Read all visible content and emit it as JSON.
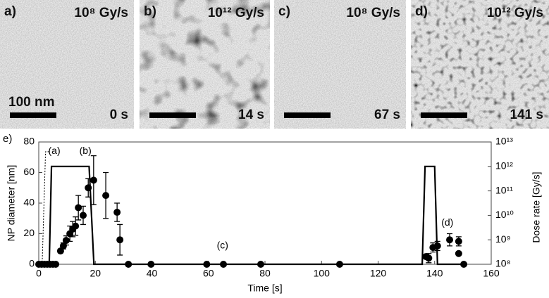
{
  "panels": [
    {
      "letter": "a)",
      "dose": "10⁸ Gy/s",
      "time": "0 s",
      "scale": "100 nm"
    },
    {
      "letter": "b)",
      "dose": "10¹² Gy/s",
      "time": "14 s"
    },
    {
      "letter": "c)",
      "dose": "10⁸ Gy/s",
      "time": "67 s"
    },
    {
      "letter": "d)",
      "dose": "10¹² Gy/s",
      "time": "141 s"
    }
  ],
  "chart_data": {
    "type": "scatter",
    "panel_label": "e)",
    "x_label": "Time [s]",
    "y_label": "NP diameter [nm]",
    "y2_label": "Dose rate  [Gy/s]",
    "xlim": [
      0,
      160
    ],
    "xticks": [
      0,
      20,
      40,
      60,
      80,
      100,
      120,
      140,
      160
    ],
    "ylim": [
      0,
      80
    ],
    "yticks": [
      0,
      20,
      40,
      60,
      80
    ],
    "y2lim": [
      100000000,
      10000000000000
    ],
    "y2log": true,
    "y2ticks": [
      {
        "value": 100000000,
        "label": "10⁸"
      },
      {
        "value": 1000000000,
        "label": "10⁹"
      },
      {
        "value": 10000000000,
        "label": "10¹⁰"
      },
      {
        "value": 100000000000,
        "label": "10¹¹"
      },
      {
        "value": 1000000000000,
        "label": "10¹²"
      },
      {
        "value": 10000000000000,
        "label": "10¹³"
      }
    ],
    "series": [
      {
        "color": "#000000",
        "x": [
          0,
          1,
          2,
          3,
          4,
          5,
          6,
          7.7,
          8.7,
          9.7,
          11,
          12,
          13,
          14,
          15.7,
          17.5,
          19.4,
          23.7,
          27.7,
          28.7,
          31.7,
          39.7,
          59.4,
          65.3,
          78.5,
          106.4,
          136.9,
          137.9,
          139.4,
          141,
          145.3,
          148.5,
          148.5,
          150.3
        ],
        "values": [
          0,
          0,
          0,
          0,
          0,
          0,
          0,
          8.7,
          12,
          15.6,
          20,
          23,
          25,
          37,
          32,
          50,
          55,
          45,
          34,
          16,
          0,
          0,
          0,
          0,
          0,
          0,
          5,
          4,
          11,
          12,
          16,
          15,
          7,
          0
        ],
        "errors": [
          0,
          0,
          0,
          0,
          0,
          0,
          0,
          1,
          2,
          3,
          5,
          5,
          6,
          8,
          6,
          6,
          16,
          15,
          6,
          10,
          0,
          0,
          0,
          0,
          0,
          0,
          1,
          3,
          3,
          3,
          4,
          3,
          1,
          0
        ]
      },
      {
        "type": "line",
        "axis": "y2",
        "color": "#000000",
        "x": [
          0,
          3.7,
          4.5,
          17.8,
          19.5,
          135.6,
          136.6,
          140,
          141,
          150
        ],
        "values": [
          100000000,
          100000000,
          1000000000000,
          1000000000000,
          100000000,
          100000000,
          1000000000000,
          1000000000000,
          100000000,
          100000000
        ]
      },
      {
        "type": "line",
        "axis": "y2",
        "color": "#000000",
        "dashed": true,
        "x": [
          0,
          1.2,
          2.4,
          4
        ],
        "values": [
          100000000,
          100000000,
          4000000000000,
          4000000000000
        ]
      }
    ],
    "annotations": [
      {
        "text": "(a)",
        "x": 5.5,
        "y": 74
      },
      {
        "text": "(b)",
        "x": 16.5,
        "y": 74
      },
      {
        "text": "(c)",
        "x": 65,
        "y": 12
      },
      {
        "text": "(d)",
        "x": 144.5,
        "y": 27
      }
    ]
  }
}
